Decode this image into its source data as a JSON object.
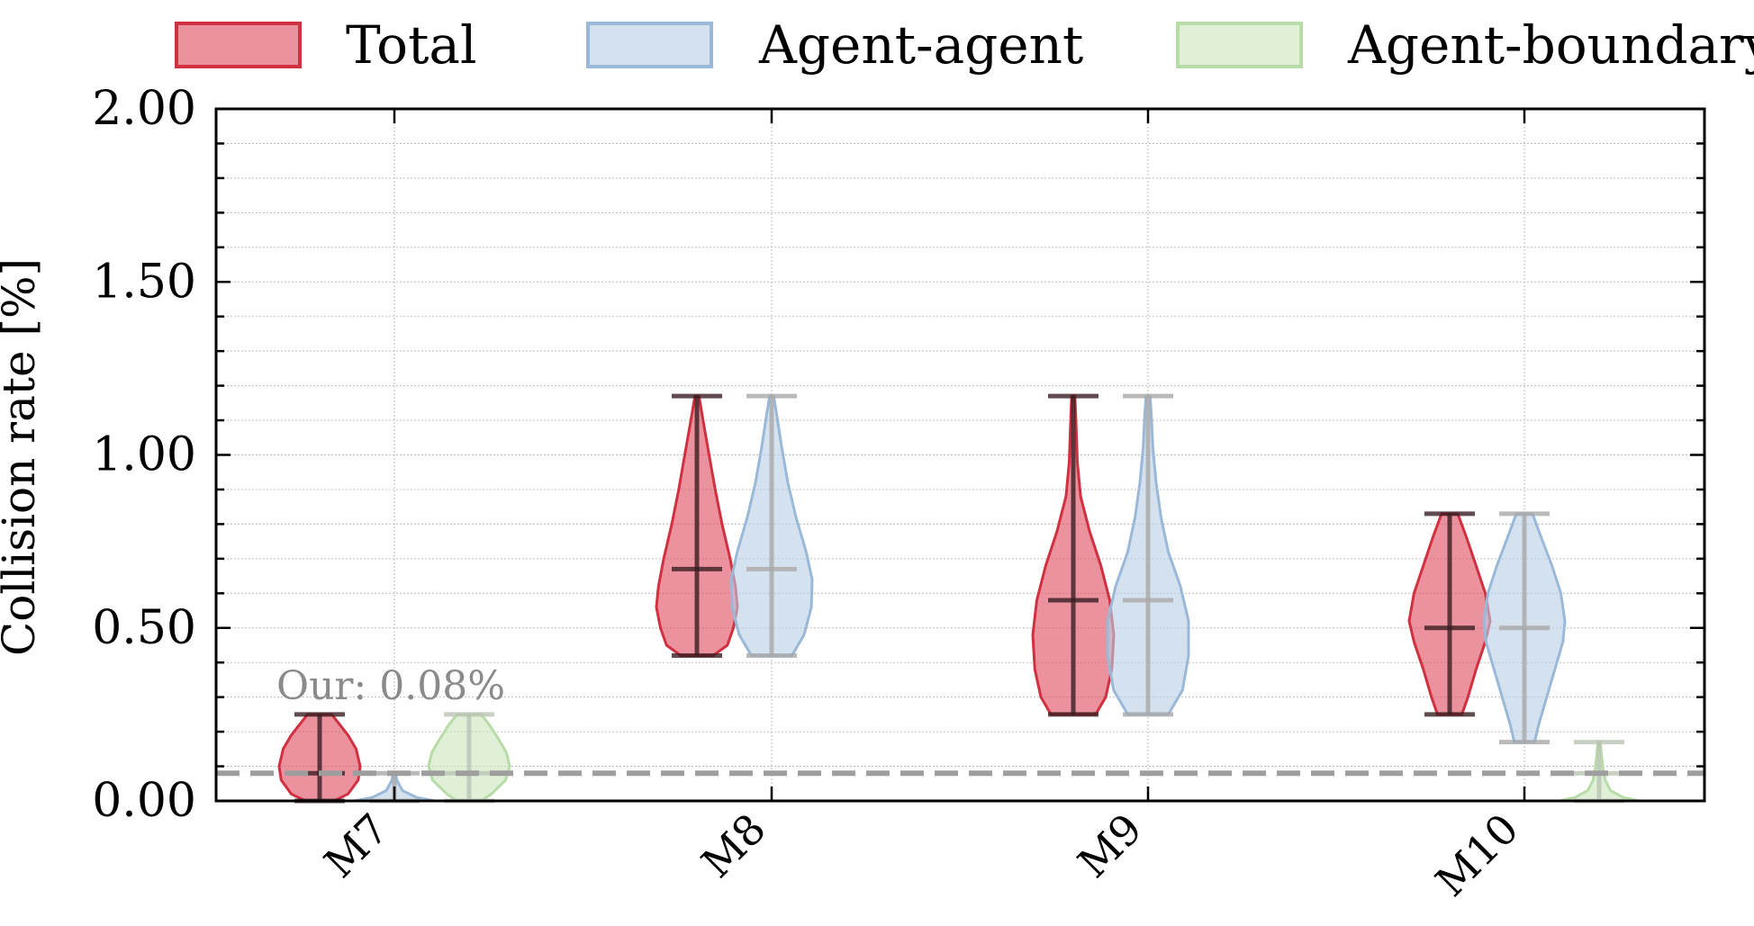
{
  "chart_data": {
    "type": "violin",
    "ylabel": "Collision rate [%]",
    "ylim": [
      0,
      2
    ],
    "yticks": [
      "0.00",
      "0.50",
      "1.00",
      "1.50",
      "2.00"
    ],
    "categories": [
      "M7",
      "M8",
      "M9",
      "M10"
    ],
    "grid": true,
    "legend_position": "top",
    "reference_line": {
      "value": 0.08,
      "label": "Our: 0.08%",
      "color": "#9e9e9e",
      "style": "dashed"
    },
    "series": [
      {
        "name": "Total",
        "fill": "#e04a5d",
        "edge": "#d0303f",
        "bar_color": "#3a1e22",
        "violins": [
          {
            "min": 0.0,
            "max": 0.25,
            "median": 0.08,
            "profile": [
              [
                0.0,
                0.35
              ],
              [
                0.02,
                0.7
              ],
              [
                0.06,
                0.95
              ],
              [
                0.1,
                1.0
              ],
              [
                0.15,
                0.9
              ],
              [
                0.19,
                0.7
              ],
              [
                0.22,
                0.5
              ],
              [
                0.25,
                0.3
              ]
            ]
          },
          {
            "min": 0.42,
            "max": 1.17,
            "median": 0.67,
            "profile": [
              [
                0.42,
                0.4
              ],
              [
                0.45,
                0.75
              ],
              [
                0.5,
                0.9
              ],
              [
                0.56,
                1.0
              ],
              [
                0.62,
                0.95
              ],
              [
                0.7,
                0.82
              ],
              [
                0.8,
                0.62
              ],
              [
                0.9,
                0.45
              ],
              [
                1.0,
                0.3
              ],
              [
                1.1,
                0.15
              ],
              [
                1.17,
                0.05
              ]
            ]
          },
          {
            "min": 0.25,
            "max": 1.17,
            "median": 0.58,
            "profile": [
              [
                0.25,
                0.55
              ],
              [
                0.3,
                0.8
              ],
              [
                0.38,
                0.95
              ],
              [
                0.48,
                1.0
              ],
              [
                0.58,
                0.9
              ],
              [
                0.68,
                0.68
              ],
              [
                0.78,
                0.4
              ],
              [
                0.88,
                0.18
              ],
              [
                0.98,
                0.1
              ],
              [
                1.08,
                0.07
              ],
              [
                1.17,
                0.04
              ]
            ]
          },
          {
            "min": 0.25,
            "max": 0.83,
            "median": 0.5,
            "profile": [
              [
                0.25,
                0.3
              ],
              [
                0.3,
                0.45
              ],
              [
                0.38,
                0.65
              ],
              [
                0.46,
                0.88
              ],
              [
                0.52,
                1.0
              ],
              [
                0.6,
                0.88
              ],
              [
                0.68,
                0.65
              ],
              [
                0.76,
                0.42
              ],
              [
                0.83,
                0.2
              ]
            ]
          }
        ]
      },
      {
        "name": "Agent-agent",
        "fill": "#b8cfe6",
        "edge": "#9ab8d8",
        "bar_color": "#a9a9a9",
        "violins": [
          {
            "min": 0.0,
            "max": 0.08,
            "median": null,
            "profile": [
              [
                0.0,
                1.0
              ],
              [
                0.01,
                0.55
              ],
              [
                0.03,
                0.2
              ],
              [
                0.06,
                0.06
              ],
              [
                0.08,
                0.03
              ]
            ]
          },
          {
            "min": 0.42,
            "max": 1.17,
            "median": 0.67,
            "profile": [
              [
                0.42,
                0.5
              ],
              [
                0.48,
                0.8
              ],
              [
                0.56,
                0.98
              ],
              [
                0.64,
                1.0
              ],
              [
                0.72,
                0.85
              ],
              [
                0.82,
                0.6
              ],
              [
                0.92,
                0.4
              ],
              [
                1.02,
                0.25
              ],
              [
                1.12,
                0.12
              ],
              [
                1.17,
                0.05
              ]
            ]
          },
          {
            "min": 0.25,
            "max": 1.17,
            "median": 0.58,
            "profile": [
              [
                0.25,
                0.5
              ],
              [
                0.32,
                0.85
              ],
              [
                0.42,
                1.0
              ],
              [
                0.52,
                1.0
              ],
              [
                0.62,
                0.8
              ],
              [
                0.72,
                0.5
              ],
              [
                0.82,
                0.32
              ],
              [
                0.92,
                0.2
              ],
              [
                1.02,
                0.12
              ],
              [
                1.12,
                0.08
              ],
              [
                1.17,
                0.05
              ]
            ]
          },
          {
            "min": 0.17,
            "max": 0.83,
            "median": 0.5,
            "profile": [
              [
                0.17,
                0.25
              ],
              [
                0.22,
                0.35
              ],
              [
                0.3,
                0.55
              ],
              [
                0.38,
                0.75
              ],
              [
                0.46,
                0.95
              ],
              [
                0.52,
                1.0
              ],
              [
                0.6,
                0.9
              ],
              [
                0.68,
                0.68
              ],
              [
                0.76,
                0.42
              ],
              [
                0.83,
                0.2
              ]
            ]
          }
        ]
      },
      {
        "name": "Agent-boundary",
        "fill": "#c9e6bd",
        "edge": "#b8dca8",
        "bar_color": "#b9c4b4",
        "violins": [
          {
            "min": 0.0,
            "max": 0.25,
            "median": 0.08,
            "profile": [
              [
                0.0,
                0.3
              ],
              [
                0.02,
                0.55
              ],
              [
                0.06,
                0.9
              ],
              [
                0.1,
                1.0
              ],
              [
                0.14,
                0.92
              ],
              [
                0.18,
                0.72
              ],
              [
                0.22,
                0.5
              ],
              [
                0.25,
                0.3
              ]
            ]
          },
          null,
          null,
          {
            "min": 0.0,
            "max": 0.17,
            "median": 0.08,
            "profile": [
              [
                0.0,
                1.0
              ],
              [
                0.01,
                0.6
              ],
              [
                0.03,
                0.28
              ],
              [
                0.06,
                0.15
              ],
              [
                0.09,
                0.1
              ],
              [
                0.13,
                0.06
              ],
              [
                0.17,
                0.03
              ]
            ]
          }
        ]
      }
    ]
  }
}
